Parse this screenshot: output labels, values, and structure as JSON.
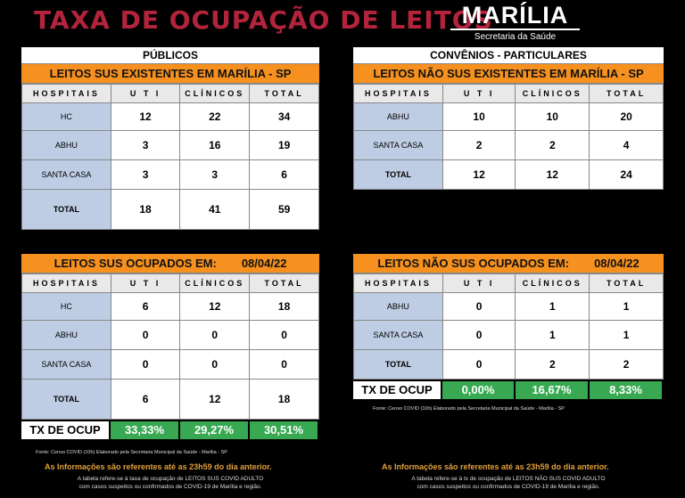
{
  "header": {
    "title": "TAXA  DE OCUPAÇÃO DE LEITOS",
    "brand_name": "MARÍLIA",
    "brand_sub": "Secretaria da Saúde"
  },
  "columns": [
    "HOSPITAIS",
    "U T I",
    "CLÍNICOS",
    "TOTAL"
  ],
  "publicos": {
    "group_label": "PÚBLICOS",
    "title": "LEITOS SUS EXISTENTES EM MARÍLIA - SP",
    "rows": [
      {
        "name": "HC",
        "uti": "12",
        "clin": "22",
        "total": "34"
      },
      {
        "name": "ABHU",
        "uti": "3",
        "clin": "16",
        "total": "19"
      },
      {
        "name": "SANTA CASA",
        "uti": "3",
        "clin": "3",
        "total": "6"
      },
      {
        "name": "TOTAL",
        "uti": "18",
        "clin": "41",
        "total": "59"
      }
    ]
  },
  "convenios": {
    "group_label": "CONVÊNIOS - PARTICULARES",
    "title": "LEITOS NÃO SUS EXISTENTES EM MARÍLIA - SP",
    "rows": [
      {
        "name": "ABHU",
        "uti": "10",
        "clin": "10",
        "total": "20"
      },
      {
        "name": "SANTA CASA",
        "uti": "2",
        "clin": "2",
        "total": "4"
      },
      {
        "name": "TOTAL",
        "uti": "12",
        "clin": "12",
        "total": "24"
      }
    ]
  },
  "sus_ocupados": {
    "title": "LEITOS SUS OCUPADOS EM:",
    "date": "08/04/22",
    "rows": [
      {
        "name": "HC",
        "uti": "6",
        "clin": "12",
        "total": "18"
      },
      {
        "name": "ABHU",
        "uti": "0",
        "clin": "0",
        "total": "0"
      },
      {
        "name": "SANTA CASA",
        "uti": "0",
        "clin": "0",
        "total": "0"
      },
      {
        "name": "TOTAL",
        "uti": "6",
        "clin": "12",
        "total": "18"
      }
    ],
    "tx_label": "TX DE OCUP",
    "tx_uti": "33,33%",
    "tx_clin": "29,27%",
    "tx_total": "30,51%",
    "source": "Fonte: Censo COVID (10h) Elaborado pela Secretaria Municipal da Saúde - Marília - SP",
    "info": "As Informações são referentes até as 23h59 do dia anterior.",
    "note_line1": "A tabela refere-se à taxa de ocupação de LEITOS SUS COVID ADULTO",
    "note_line2": "com casos suspeitos ou confirmados de COVID-19 de Marília e região."
  },
  "nao_sus_ocupados": {
    "title": "LEITOS NÃO SUS OCUPADOS EM:",
    "date": "08/04/22",
    "rows": [
      {
        "name": "ABHU",
        "uti": "0",
        "clin": "1",
        "total": "1"
      },
      {
        "name": "SANTA CASA",
        "uti": "0",
        "clin": "1",
        "total": "1"
      },
      {
        "name": "TOTAL",
        "uti": "0",
        "clin": "2",
        "total": "2"
      }
    ],
    "tx_label": "TX DE OCUP",
    "tx_uti": "0,00%",
    "tx_clin": "16,67%",
    "tx_total": "8,33%",
    "source": "Fonte: Censo COVID (10h) Elaborado pela Secretaria Municipal da Saúde - Marília - SP",
    "info": "As Informações são referentes até as 23h59 do dia anterior.",
    "note_line1": "A tabela refere-se à tx de ocupação de LEITOS NÃO SUS COVID ADULTO",
    "note_line2": "com casos suspeitos ou confirmados de COVID-19 de Marília e região."
  }
}
